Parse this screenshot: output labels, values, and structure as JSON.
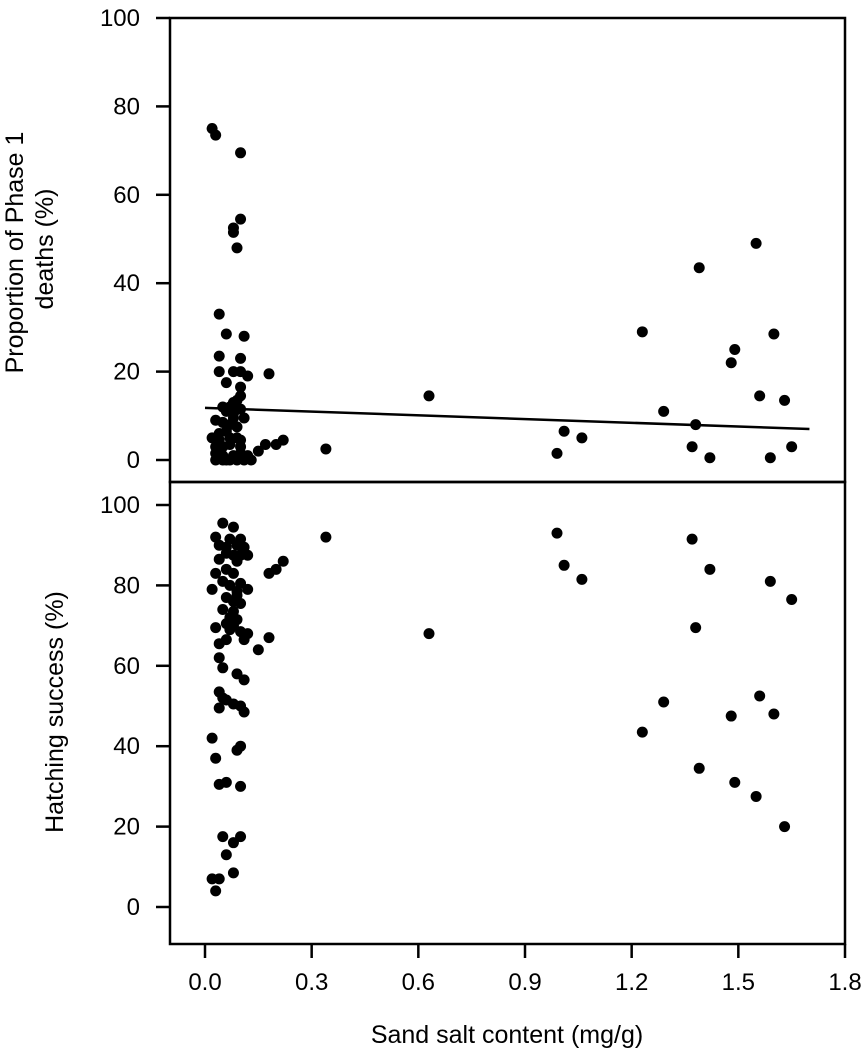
{
  "chart_data": [
    {
      "type": "scatter",
      "panel": "top",
      "ylabel_lines": [
        "Proportion of Phase 1",
        "deaths (%)"
      ],
      "ylim": [
        0,
        100
      ],
      "yticks": [
        "0",
        "20",
        "40",
        "60",
        "80",
        "100"
      ],
      "xlim": [
        -0.09,
        1.8
      ],
      "trendline": {
        "x": [
          0.0,
          1.7
        ],
        "y": [
          11.8,
          7.0
        ]
      },
      "series": [
        {
          "points": [
            [
              0.02,
              75.0
            ],
            [
              0.03,
              73.5
            ],
            [
              0.1,
              69.5
            ],
            [
              0.1,
              54.5
            ],
            [
              0.08,
              52.5
            ],
            [
              0.08,
              51.5
            ],
            [
              0.09,
              48.0
            ],
            [
              0.04,
              33.0
            ],
            [
              0.06,
              28.5
            ],
            [
              0.11,
              28.0
            ],
            [
              0.04,
              23.5
            ],
            [
              0.1,
              23.0
            ],
            [
              0.04,
              20.0
            ],
            [
              0.08,
              20.0
            ],
            [
              0.1,
              20.0
            ],
            [
              0.12,
              19.0
            ],
            [
              0.18,
              19.5
            ],
            [
              0.06,
              17.5
            ],
            [
              0.1,
              16.5
            ],
            [
              0.1,
              14.5
            ],
            [
              0.09,
              13.5
            ],
            [
              0.08,
              13.0
            ],
            [
              0.05,
              12.0
            ],
            [
              0.07,
              12.0
            ],
            [
              0.09,
              12.0
            ],
            [
              0.06,
              11.0
            ],
            [
              0.1,
              11.5
            ],
            [
              0.08,
              10.5
            ],
            [
              0.03,
              9.0
            ],
            [
              0.08,
              9.5
            ],
            [
              0.11,
              9.5
            ],
            [
              0.05,
              8.5
            ],
            [
              0.07,
              8.0
            ],
            [
              0.09,
              7.5
            ],
            [
              0.06,
              6.5
            ],
            [
              0.04,
              6.0
            ],
            [
              0.02,
              5.0
            ],
            [
              0.04,
              4.5
            ],
            [
              0.07,
              5.0
            ],
            [
              0.09,
              5.0
            ],
            [
              0.1,
              4.5
            ],
            [
              0.03,
              3.0
            ],
            [
              0.05,
              3.0
            ],
            [
              0.07,
              3.5
            ],
            [
              0.1,
              3.0
            ],
            [
              0.17,
              3.5
            ],
            [
              0.2,
              3.5
            ],
            [
              0.22,
              4.5
            ],
            [
              0.15,
              2.0
            ],
            [
              0.03,
              1.5
            ],
            [
              0.05,
              1.0
            ],
            [
              0.08,
              1.0
            ],
            [
              0.1,
              1.5
            ],
            [
              0.12,
              1.0
            ],
            [
              0.03,
              0.0
            ],
            [
              0.05,
              0.0
            ],
            [
              0.06,
              0.0
            ],
            [
              0.07,
              0.0
            ],
            [
              0.09,
              0.0
            ],
            [
              0.11,
              0.0
            ],
            [
              0.13,
              0.0
            ],
            [
              0.34,
              2.5
            ],
            [
              0.63,
              14.5
            ],
            [
              0.99,
              1.5
            ],
            [
              1.01,
              6.5
            ],
            [
              1.06,
              5.0
            ],
            [
              1.23,
              29.0
            ],
            [
              1.29,
              11.0
            ],
            [
              1.37,
              3.0
            ],
            [
              1.38,
              8.0
            ],
            [
              1.39,
              43.5
            ],
            [
              1.42,
              0.5
            ],
            [
              1.48,
              22.0
            ],
            [
              1.49,
              25.0
            ],
            [
              1.55,
              49.0
            ],
            [
              1.56,
              14.5
            ],
            [
              1.59,
              0.5
            ],
            [
              1.6,
              28.5
            ],
            [
              1.63,
              13.5
            ],
            [
              1.65,
              3.0
            ]
          ]
        }
      ]
    },
    {
      "type": "scatter",
      "panel": "bottom",
      "ylabel": "Hatching success (%)",
      "xlabel": "Sand salt content (mg/g)",
      "ylim": [
        -10,
        104
      ],
      "yticks": [
        "0",
        "20",
        "40",
        "60",
        "80",
        "100"
      ],
      "xlim": [
        -0.09,
        1.8
      ],
      "xticks": [
        "0.0",
        "0.3",
        "0.6",
        "0.9",
        "1.2",
        "1.5",
        "1.8"
      ],
      "series": [
        {
          "points": [
            [
              0.05,
              95.5
            ],
            [
              0.08,
              94.5
            ],
            [
              0.03,
              92.0
            ],
            [
              0.07,
              91.5
            ],
            [
              0.1,
              91.5
            ],
            [
              0.04,
              90.0
            ],
            [
              0.06,
              89.5
            ],
            [
              0.09,
              90.0
            ],
            [
              0.11,
              89.5
            ],
            [
              0.06,
              88.0
            ],
            [
              0.08,
              87.5
            ],
            [
              0.1,
              87.5
            ],
            [
              0.12,
              87.5
            ],
            [
              0.04,
              86.5
            ],
            [
              0.09,
              86.0
            ],
            [
              0.06,
              84.0
            ],
            [
              0.03,
              83.0
            ],
            [
              0.08,
              83.0
            ],
            [
              0.05,
              81.0
            ],
            [
              0.07,
              80.0
            ],
            [
              0.1,
              80.5
            ],
            [
              0.02,
              79.0
            ],
            [
              0.09,
              78.5
            ],
            [
              0.12,
              79.0
            ],
            [
              0.06,
              77.0
            ],
            [
              0.09,
              77.5
            ],
            [
              0.08,
              76.0
            ],
            [
              0.1,
              75.5
            ],
            [
              0.05,
              74.0
            ],
            [
              0.08,
              73.5
            ],
            [
              0.07,
              72.0
            ],
            [
              0.09,
              71.5
            ],
            [
              0.06,
              70.5
            ],
            [
              0.08,
              70.0
            ],
            [
              0.03,
              69.5
            ],
            [
              0.07,
              69.0
            ],
            [
              0.1,
              68.5
            ],
            [
              0.12,
              68.0
            ],
            [
              0.06,
              66.5
            ],
            [
              0.11,
              66.5
            ],
            [
              0.04,
              65.5
            ],
            [
              0.15,
              64.0
            ],
            [
              0.04,
              62.0
            ],
            [
              0.05,
              59.5
            ],
            [
              0.09,
              58.0
            ],
            [
              0.11,
              56.5
            ],
            [
              0.04,
              53.5
            ],
            [
              0.05,
              52.0
            ],
            [
              0.06,
              51.5
            ],
            [
              0.08,
              50.5
            ],
            [
              0.1,
              50.0
            ],
            [
              0.04,
              49.5
            ],
            [
              0.11,
              48.5
            ],
            [
              0.02,
              42.0
            ],
            [
              0.1,
              40.0
            ],
            [
              0.09,
              39.0
            ],
            [
              0.03,
              37.0
            ],
            [
              0.06,
              31.0
            ],
            [
              0.04,
              30.5
            ],
            [
              0.1,
              30.0
            ],
            [
              0.05,
              17.5
            ],
            [
              0.1,
              17.5
            ],
            [
              0.08,
              16.0
            ],
            [
              0.06,
              13.0
            ],
            [
              0.08,
              8.5
            ],
            [
              0.02,
              7.0
            ],
            [
              0.04,
              7.0
            ],
            [
              0.03,
              4.0
            ],
            [
              0.18,
              67.0
            ],
            [
              0.18,
              83.0
            ],
            [
              0.2,
              84.0
            ],
            [
              0.22,
              86.0
            ],
            [
              0.34,
              92.0
            ],
            [
              0.63,
              68.0
            ],
            [
              0.99,
              93.0
            ],
            [
              1.01,
              85.0
            ],
            [
              1.06,
              81.5
            ],
            [
              1.23,
              43.5
            ],
            [
              1.29,
              51.0
            ],
            [
              1.37,
              91.5
            ],
            [
              1.38,
              69.5
            ],
            [
              1.39,
              34.5
            ],
            [
              1.42,
              84.0
            ],
            [
              1.48,
              47.5
            ],
            [
              1.49,
              31.0
            ],
            [
              1.55,
              27.5
            ],
            [
              1.56,
              52.5
            ],
            [
              1.59,
              81.0
            ],
            [
              1.6,
              48.0
            ],
            [
              1.63,
              20.0
            ],
            [
              1.65,
              76.5
            ]
          ]
        }
      ]
    }
  ]
}
